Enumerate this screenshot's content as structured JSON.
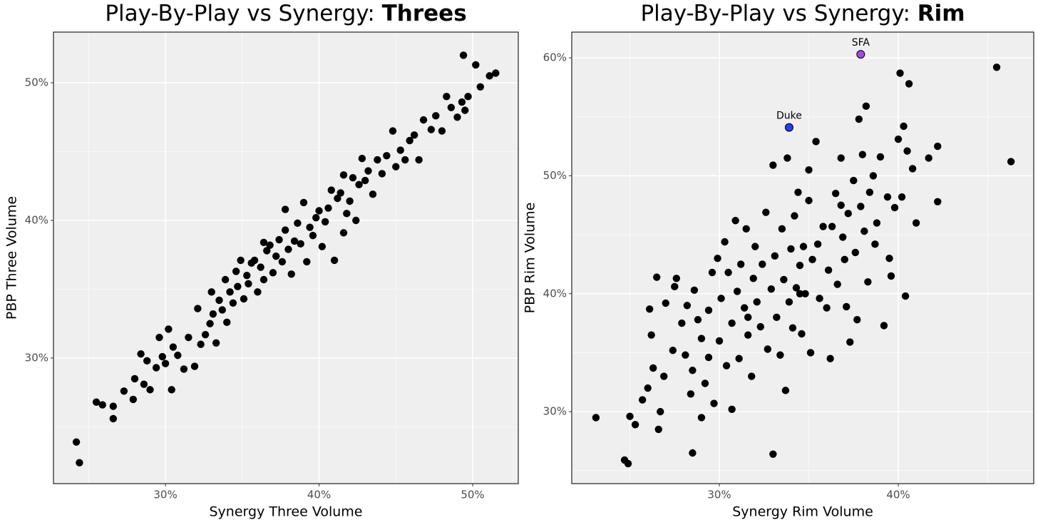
{
  "chart_data": [
    {
      "type": "scatter",
      "title_prefix": "Play-By-Play vs Synergy: ",
      "title_emphasis": "Threes",
      "xlabel": "Synergy Three Volume",
      "ylabel": "PBP Three Volume",
      "color": "#000000",
      "grid": true,
      "xlim": [
        22.71,
        52.97
      ],
      "ylim": [
        20.88,
        53.68
      ],
      "xticks": [
        {
          "value": 30,
          "label": "30%"
        },
        {
          "value": 40,
          "label": "40%"
        },
        {
          "value": 50,
          "label": "50%"
        }
      ],
      "yticks": [
        {
          "value": 30,
          "label": "30%"
        },
        {
          "value": 40,
          "label": "40%"
        },
        {
          "value": 50,
          "label": "50%"
        }
      ],
      "x": [
        24.2,
        24.4,
        25.5,
        25.9,
        26.6,
        26.6,
        27.3,
        27.9,
        28.0,
        28.4,
        28.6,
        28.8,
        29.0,
        29.4,
        29.6,
        29.8,
        30.0,
        30.2,
        30.4,
        30.5,
        30.8,
        31.2,
        31.5,
        31.9,
        32.1,
        32.3,
        32.6,
        32.9,
        33.1,
        33.3,
        33.5,
        33.7,
        33.9,
        34.0,
        34.2,
        34.4,
        34.6,
        34.7,
        34.9,
        35.1,
        35.3,
        35.4,
        35.6,
        35.8,
        36.0,
        36.2,
        36.4,
        36.6,
        36.8,
        37.0,
        37.2,
        37.4,
        37.6,
        37.8,
        38.0,
        38.2,
        38.4,
        38.6,
        38.8,
        39.0,
        39.2,
        39.4,
        39.6,
        39.8,
        40.0,
        40.2,
        40.4,
        40.6,
        40.8,
        41.0,
        41.2,
        41.4,
        41.6,
        41.8,
        42.0,
        42.2,
        42.4,
        42.6,
        42.8,
        43.0,
        43.2,
        43.5,
        43.8,
        44.1,
        44.4,
        44.8,
        45.0,
        45.3,
        45.6,
        45.9,
        46.2,
        46.5,
        46.8,
        47.3,
        47.6,
        48.0,
        48.3,
        48.6,
        49.0,
        49.3,
        49.4,
        49.5,
        49.7,
        50.2,
        50.5,
        51.1,
        51.5,
        37.8,
        33.0,
        36.4,
        41.6
      ],
      "y": [
        23.9,
        22.4,
        26.8,
        26.6,
        25.6,
        26.5,
        27.6,
        27.0,
        28.5,
        30.3,
        28.1,
        29.8,
        27.7,
        29.3,
        31.5,
        30.1,
        29.6,
        32.1,
        27.7,
        30.8,
        30.2,
        29.2,
        31.5,
        29.4,
        33.6,
        31.0,
        31.7,
        32.5,
        33.2,
        31.1,
        34.2,
        33.5,
        35.7,
        32.6,
        34.8,
        34.0,
        36.3,
        35.2,
        37.1,
        34.3,
        36.0,
        35.4,
        36.9,
        37.1,
        34.8,
        36.6,
        35.7,
        37.8,
        38.2,
        36.2,
        37.4,
        38.6,
        37.0,
        39.3,
        37.9,
        36.1,
        38.5,
        39.8,
        38.3,
        41.3,
        37.0,
        39.5,
        38.9,
        40.2,
        40.7,
        38.1,
        39.9,
        40.9,
        42.2,
        37.1,
        41.6,
        42.0,
        43.3,
        40.5,
        41.4,
        43.1,
        40.0,
        42.6,
        44.5,
        42.9,
        43.6,
        41.9,
        44.4,
        43.4,
        44.7,
        46.5,
        43.9,
        45.1,
        44.4,
        45.8,
        46.2,
        44.4,
        47.3,
        46.6,
        47.6,
        46.5,
        49.0,
        48.2,
        47.5,
        48.6,
        52.0,
        48.0,
        49.0,
        51.3,
        49.7,
        50.5,
        50.7,
        40.8,
        34.8,
        38.4,
        39.1
      ],
      "highlights": []
    },
    {
      "type": "scatter",
      "title_prefix": "Play-By-Play vs Synergy: ",
      "title_emphasis": "Rim",
      "xlabel": "Synergy Rim Volume",
      "ylabel": "PBP Rim Volume",
      "color": "#000000",
      "grid": true,
      "xlim": [
        21.75,
        47.57
      ],
      "ylim": [
        23.9,
        62.18
      ],
      "xticks": [
        {
          "value": 30,
          "label": "30%"
        },
        {
          "value": 40,
          "label": "40%"
        }
      ],
      "yticks": [
        {
          "value": 30,
          "label": "30%"
        },
        {
          "value": 40,
          "label": "40%"
        },
        {
          "value": 50,
          "label": "50%"
        },
        {
          "value": 60,
          "label": "60%"
        }
      ],
      "x": [
        23.1,
        24.7,
        24.9,
        25.0,
        25.3,
        25.7,
        26.0,
        26.1,
        26.2,
        26.3,
        26.5,
        26.6,
        26.7,
        26.9,
        27.0,
        27.4,
        27.5,
        27.6,
        27.9,
        28.1,
        28.2,
        28.4,
        28.5,
        28.5,
        28.6,
        28.8,
        29.0,
        29.2,
        29.4,
        29.4,
        29.6,
        29.7,
        29.9,
        30.0,
        30.1,
        30.3,
        30.4,
        30.5,
        30.7,
        30.7,
        30.9,
        31.0,
        31.1,
        31.2,
        31.4,
        31.5,
        31.6,
        31.8,
        31.9,
        32.0,
        32.1,
        32.3,
        32.4,
        32.6,
        32.7,
        32.9,
        33.0,
        33.0,
        33.1,
        33.2,
        33.4,
        33.5,
        33.6,
        33.7,
        33.8,
        33.9,
        34.0,
        34.1,
        34.2,
        34.3,
        34.4,
        34.5,
        34.6,
        34.7,
        34.8,
        35.0,
        35.1,
        35.2,
        35.4,
        35.5,
        35.6,
        35.8,
        36.0,
        36.1,
        36.2,
        36.3,
        36.5,
        36.6,
        36.8,
        36.9,
        37.0,
        37.1,
        37.2,
        37.3,
        37.5,
        37.6,
        37.7,
        37.8,
        37.9,
        38.0,
        38.1,
        38.2,
        38.3,
        38.4,
        38.6,
        38.7,
        38.8,
        39.0,
        39.2,
        39.4,
        39.5,
        39.6,
        39.8,
        40.0,
        40.1,
        40.2,
        40.3,
        40.4,
        40.5,
        40.6,
        40.8,
        41.0,
        41.7,
        42.2,
        42.2,
        45.5,
        46.3,
        29.0,
        31.6,
        34.5,
        36.8,
        35.0
      ],
      "y": [
        29.5,
        25.9,
        25.6,
        29.6,
        28.9,
        31.0,
        32.0,
        38.7,
        36.5,
        33.7,
        41.4,
        28.5,
        30.0,
        33.0,
        39.2,
        35.2,
        40.6,
        41.3,
        37.5,
        34.8,
        39.0,
        31.5,
        26.5,
        33.5,
        40.3,
        37.8,
        36.2,
        32.4,
        34.6,
        38.6,
        41.8,
        30.7,
        43.0,
        36.0,
        39.6,
        44.4,
        33.9,
        41.8,
        37.5,
        30.2,
        46.2,
        40.2,
        34.5,
        42.5,
        38.8,
        45.5,
        36.5,
        33.0,
        41.3,
        44.0,
        39.3,
        37.2,
        42.5,
        46.9,
        35.3,
        40.4,
        26.4,
        50.9,
        43.2,
        38.0,
        34.8,
        45.5,
        41.2,
        31.8,
        51.5,
        39.3,
        43.8,
        37.1,
        46.6,
        40.5,
        48.6,
        42.4,
        36.6,
        44.0,
        40.0,
        47.9,
        35.0,
        42.9,
        52.9,
        44.2,
        39.6,
        45.7,
        38.8,
        42.0,
        34.5,
        45.7,
        48.5,
        40.8,
        51.5,
        44.8,
        42.9,
        38.9,
        46.8,
        35.9,
        49.6,
        43.5,
        37.8,
        54.8,
        47.4,
        51.8,
        45.3,
        55.9,
        41.0,
        48.6,
        50.0,
        44.2,
        46.0,
        51.6,
        37.3,
        48.2,
        43.0,
        41.5,
        47.3,
        53.1,
        58.7,
        48.2,
        54.2,
        39.8,
        52.1,
        57.8,
        50.6,
        46.0,
        51.5,
        52.5,
        47.8,
        59.2,
        51.2,
        29.5,
        38.0,
        40.0,
        47.5,
        50.5
      ],
      "highlights": [
        {
          "label": "SFA",
          "x": 37.9,
          "y": 60.3,
          "color": "#a347e6"
        },
        {
          "label": "Duke",
          "x": 33.9,
          "y": 54.1,
          "color": "#1f3ff5"
        }
      ]
    }
  ]
}
